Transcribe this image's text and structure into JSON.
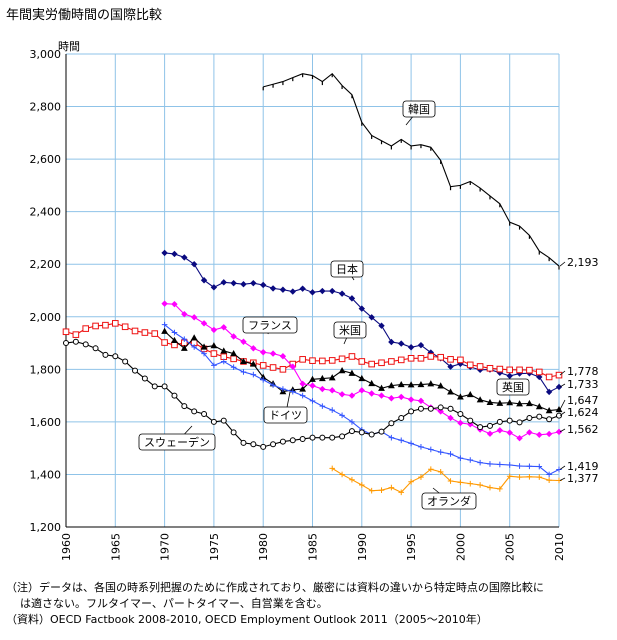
{
  "chart_data": {
    "type": "line",
    "title": "年間実労働時間の国際比較",
    "ylabel": "時間",
    "xlabel": "",
    "xlim": [
      1960,
      2010
    ],
    "ylim": [
      1200,
      3000
    ],
    "yticks": [
      1200,
      1400,
      1600,
      1800,
      2000,
      2200,
      2400,
      2600,
      2800,
      3000
    ],
    "ytick_labels": [
      "1,200",
      "1,400",
      "1,600",
      "1,800",
      "2,000",
      "2,200",
      "2,400",
      "2,600",
      "2,800",
      "3,000"
    ],
    "xticks": [
      1960,
      1965,
      1970,
      1975,
      1980,
      1985,
      1990,
      1995,
      2000,
      2005,
      2010
    ],
    "grid": true,
    "series": [
      {
        "name": "韓国",
        "color": "#000000",
        "marker": "tick",
        "x": [
          1980,
          1981,
          1982,
          1983,
          1984,
          1985,
          1986,
          1987,
          1988,
          1989,
          1990,
          1991,
          1992,
          1993,
          1994,
          1995,
          1996,
          1997,
          1998,
          1999,
          2000,
          2001,
          2002,
          2003,
          2004,
          2005,
          2006,
          2007,
          2008,
          2009,
          2010
        ],
        "y": [
          2875,
          2885,
          2895,
          2910,
          2925,
          2918,
          2895,
          2925,
          2880,
          2845,
          2740,
          2690,
          2670,
          2650,
          2675,
          2650,
          2655,
          2645,
          2595,
          2495,
          2500,
          2515,
          2490,
          2460,
          2430,
          2360,
          2345,
          2310,
          2250,
          2225,
          2193
        ],
        "end_label": "2,193"
      },
      {
        "name": "日本",
        "color": "#0a0a80",
        "marker": "diamond",
        "x": [
          1970,
          1971,
          1972,
          1973,
          1974,
          1975,
          1976,
          1977,
          1978,
          1979,
          1980,
          1981,
          1982,
          1983,
          1984,
          1985,
          1986,
          1987,
          1988,
          1989,
          1990,
          1991,
          1992,
          1993,
          1994,
          1995,
          1996,
          1997,
          1998,
          1999,
          2000,
          2001,
          2002,
          2003,
          2004,
          2005,
          2006,
          2007,
          2008,
          2009,
          2010
        ],
        "y": [
          2243,
          2239,
          2226,
          2200,
          2139,
          2112,
          2131,
          2128,
          2124,
          2128,
          2121,
          2108,
          2103,
          2096,
          2107,
          2093,
          2098,
          2098,
          2088,
          2070,
          2031,
          1998,
          1966,
          1904,
          1898,
          1884,
          1892,
          1864,
          1842,
          1810,
          1821,
          1809,
          1798,
          1799,
          1787,
          1775,
          1784,
          1785,
          1771,
          1714,
          1733
        ],
        "end_label": "1,733"
      },
      {
        "name": "米国",
        "color": "#ee1111",
        "marker": "square",
        "x": [
          1960,
          1961,
          1962,
          1963,
          1964,
          1965,
          1966,
          1967,
          1968,
          1969,
          1970,
          1971,
          1972,
          1973,
          1974,
          1975,
          1976,
          1977,
          1978,
          1979,
          1980,
          1981,
          1982,
          1983,
          1984,
          1985,
          1986,
          1987,
          1988,
          1989,
          1990,
          1991,
          1992,
          1993,
          1994,
          1995,
          1996,
          1997,
          1998,
          1999,
          2000,
          2001,
          2002,
          2003,
          2004,
          2005,
          2006,
          2007,
          2008,
          2009,
          2010
        ],
        "y": [
          1943,
          1932,
          1955,
          1965,
          1968,
          1975,
          1962,
          1946,
          1940,
          1936,
          1902,
          1893,
          1901,
          1901,
          1878,
          1860,
          1848,
          1840,
          1830,
          1825,
          1815,
          1807,
          1800,
          1820,
          1838,
          1833,
          1832,
          1834,
          1840,
          1849,
          1830,
          1820,
          1825,
          1830,
          1836,
          1842,
          1842,
          1849,
          1846,
          1838,
          1836,
          1817,
          1811,
          1804,
          1801,
          1798,
          1798,
          1797,
          1790,
          1771,
          1778
        ],
        "end_label": "1,778"
      },
      {
        "name": "英国",
        "color": "#000000",
        "marker": "triangle",
        "x": [
          1970,
          1971,
          1972,
          1973,
          1974,
          1975,
          1976,
          1977,
          1978,
          1979,
          1980,
          1981,
          1982,
          1983,
          1984,
          1985,
          1986,
          1987,
          1988,
          1989,
          1990,
          1991,
          1992,
          1993,
          1994,
          1995,
          1996,
          1997,
          1998,
          1999,
          2000,
          2001,
          2002,
          2003,
          2004,
          2005,
          2006,
          2007,
          2008,
          2009,
          2010
        ],
        "y": [
          1945,
          1910,
          1880,
          1920,
          1885,
          1890,
          1870,
          1860,
          1830,
          1820,
          1770,
          1745,
          1715,
          1722,
          1725,
          1762,
          1765,
          1768,
          1795,
          1785,
          1765,
          1746,
          1728,
          1738,
          1742,
          1741,
          1742,
          1745,
          1737,
          1714,
          1695,
          1704,
          1684,
          1674,
          1671,
          1673,
          1669,
          1670,
          1658,
          1643,
          1647
        ],
        "end_label": "1,647"
      },
      {
        "name": "フランス",
        "color": "#ff00ff",
        "marker": "diamond",
        "x": [
          1970,
          1971,
          1972,
          1973,
          1974,
          1975,
          1976,
          1977,
          1978,
          1979,
          1980,
          1981,
          1982,
          1983,
          1984,
          1985,
          1986,
          1987,
          1988,
          1989,
          1990,
          1991,
          1992,
          1993,
          1994,
          1995,
          1996,
          1997,
          1998,
          1999,
          2000,
          2001,
          2002,
          2003,
          2004,
          2005,
          2006,
          2007,
          2008,
          2009,
          2010
        ],
        "y": [
          2050,
          2048,
          2010,
          1998,
          1975,
          1950,
          1960,
          1925,
          1905,
          1880,
          1865,
          1860,
          1850,
          1810,
          1745,
          1738,
          1725,
          1720,
          1705,
          1700,
          1720,
          1708,
          1700,
          1690,
          1695,
          1685,
          1680,
          1655,
          1640,
          1615,
          1596,
          1591,
          1571,
          1555,
          1568,
          1559,
          1538,
          1560,
          1551,
          1554,
          1562
        ],
        "end_label": "1,562"
      },
      {
        "name": "ドイツ",
        "color": "#3355ff",
        "marker": "plus",
        "x": [
          1970,
          1971,
          1972,
          1973,
          1974,
          1975,
          1976,
          1977,
          1978,
          1979,
          1980,
          1981,
          1982,
          1983,
          1984,
          1985,
          1986,
          1987,
          1988,
          1989,
          1990,
          1991,
          1992,
          1993,
          1994,
          1995,
          1996,
          1997,
          1998,
          1999,
          2000,
          2001,
          2002,
          2003,
          2004,
          2005,
          2006,
          2007,
          2008,
          2009,
          2010
        ],
        "y": [
          1970,
          1940,
          1915,
          1885,
          1860,
          1815,
          1830,
          1808,
          1790,
          1780,
          1760,
          1740,
          1725,
          1715,
          1700,
          1680,
          1660,
          1645,
          1625,
          1600,
          1570,
          1552,
          1563,
          1540,
          1530,
          1518,
          1505,
          1495,
          1485,
          1478,
          1462,
          1455,
          1445,
          1440,
          1438,
          1436,
          1432,
          1431,
          1430,
          1400,
          1419
        ],
        "end_label": "1,419"
      },
      {
        "name": "スウェーデン",
        "color": "#000000",
        "marker": "circle",
        "x": [
          1960,
          1961,
          1962,
          1963,
          1964,
          1965,
          1966,
          1967,
          1968,
          1969,
          1970,
          1971,
          1972,
          1973,
          1974,
          1975,
          1976,
          1977,
          1978,
          1979,
          1980,
          1981,
          1982,
          1983,
          1984,
          1985,
          1986,
          1987,
          1988,
          1989,
          1990,
          1991,
          1992,
          1993,
          1994,
          1995,
          1996,
          1997,
          1998,
          1999,
          2000,
          2001,
          2002,
          2003,
          2004,
          2005,
          2006,
          2007,
          2008,
          2009,
          2010
        ],
        "y": [
          1900,
          1905,
          1895,
          1880,
          1855,
          1850,
          1830,
          1795,
          1765,
          1735,
          1735,
          1700,
          1660,
          1640,
          1630,
          1600,
          1605,
          1560,
          1520,
          1515,
          1505,
          1515,
          1525,
          1530,
          1535,
          1540,
          1540,
          1540,
          1545,
          1565,
          1560,
          1552,
          1563,
          1595,
          1615,
          1640,
          1650,
          1650,
          1655,
          1650,
          1630,
          1605,
          1580,
          1585,
          1600,
          1605,
          1598,
          1615,
          1620,
          1610,
          1624
        ],
        "end_label": "1,624"
      },
      {
        "name": "オランダ",
        "color": "#ff9900",
        "marker": "plus",
        "x": [
          1987,
          1988,
          1989,
          1990,
          1991,
          1992,
          1993,
          1994,
          1995,
          1996,
          1997,
          1998,
          1999,
          2000,
          2001,
          2002,
          2003,
          2004,
          2005,
          2006,
          2007,
          2008,
          2009,
          2010
        ],
        "y": [
          1423,
          1400,
          1380,
          1360,
          1338,
          1340,
          1350,
          1332,
          1372,
          1390,
          1420,
          1410,
          1375,
          1370,
          1365,
          1360,
          1350,
          1345,
          1393,
          1390,
          1391,
          1390,
          1378,
          1377
        ],
        "end_label": "1,377"
      }
    ],
    "annotations": [
      "韓国",
      "日本",
      "米国",
      "英国",
      "フランス",
      "ドイツ",
      "スウェーデン",
      "オランダ"
    ]
  },
  "notes": {
    "note_line1": "（注）データは、各国の時系列把握のために作成されており、厳密には資料の違いから特定時点の国際比較に",
    "note_line2": "は適さない。フルタイマー、パートタイマー、自営業を含む。",
    "source_line": "（資料）OECD Factbook 2008-2010, OECD Employment Outlook 2011（2005〜2010年）"
  }
}
